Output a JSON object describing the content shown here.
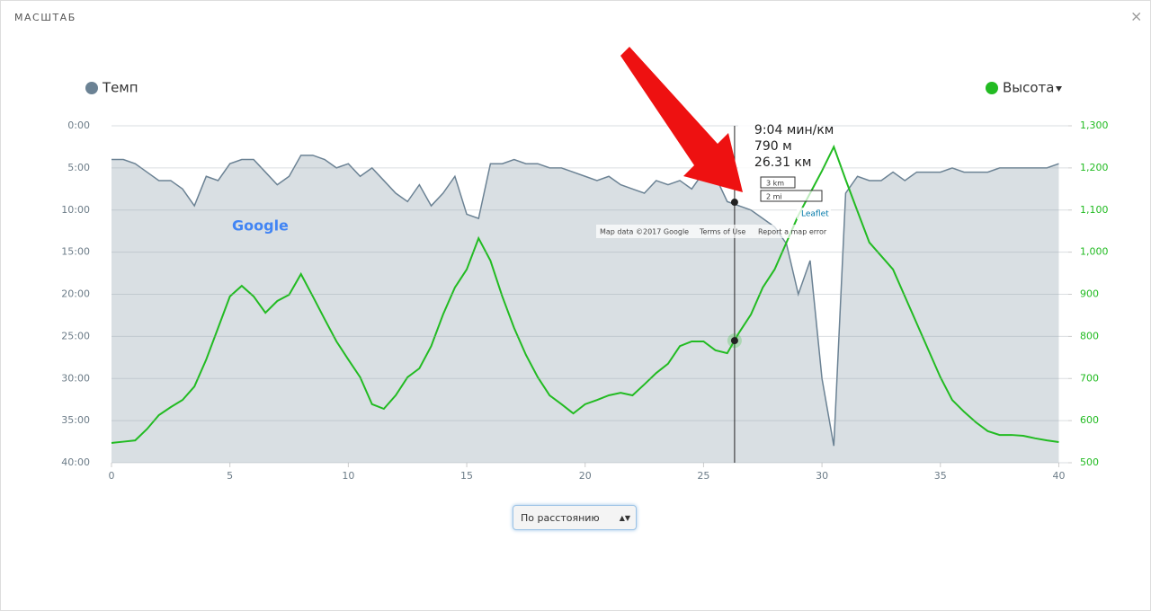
{
  "header": {
    "title": "МАСШТАБ",
    "close": "×"
  },
  "chart_data": {
    "type": "line",
    "x": [
      0,
      0.5,
      1,
      1.5,
      2,
      2.5,
      3,
      3.5,
      4,
      4.5,
      5,
      5.5,
      6,
      6.5,
      7,
      7.5,
      8,
      8.5,
      9,
      9.5,
      10,
      10.5,
      11,
      11.5,
      12,
      12.5,
      13,
      13.5,
      14,
      14.5,
      15,
      15.5,
      16,
      16.5,
      17,
      17.5,
      18,
      18.5,
      19,
      19.5,
      20,
      20.5,
      21,
      21.5,
      22,
      22.5,
      23,
      23.5,
      24,
      24.5,
      25,
      25.5,
      26,
      26.5,
      27,
      27.5,
      28,
      28.5,
      29,
      29.5,
      30,
      30.5,
      31,
      31.5,
      32,
      32.5,
      33,
      33.5,
      34,
      34.5,
      35,
      35.5,
      36,
      36.5,
      37,
      37.5,
      38,
      38.5,
      39,
      39.5,
      40
    ],
    "series": [
      {
        "name": "Темп",
        "color": "#6b8294",
        "fill": "#d9dfe3",
        "axis": "y",
        "values": [
          4.0,
          4.0,
          4.5,
          5.5,
          6.5,
          6.5,
          7.5,
          9.5,
          6.0,
          6.5,
          4.5,
          4.0,
          4.0,
          5.5,
          7.0,
          6.0,
          3.5,
          3.5,
          4.0,
          5.0,
          4.5,
          6.0,
          5.0,
          6.5,
          8.0,
          9.0,
          7.0,
          9.5,
          8.0,
          6.0,
          10.5,
          11.0,
          4.5,
          4.5,
          4.0,
          4.5,
          4.5,
          5.0,
          5.0,
          5.5,
          6.0,
          6.5,
          6.0,
          7.0,
          7.5,
          8.0,
          6.5,
          7.0,
          6.5,
          7.5,
          5.5,
          6.0,
          9.0,
          9.5,
          10.0,
          11.0,
          12.0,
          14.0,
          20.0,
          16.0,
          30.0,
          38.0,
          8.0,
          6.0,
          6.5,
          6.5,
          5.5,
          6.5,
          5.5,
          5.5,
          5.5,
          5.0,
          5.5,
          5.5,
          5.5,
          5.0,
          5.0,
          5.0,
          5.0,
          5.0,
          4.5
        ]
      },
      {
        "name": "Высота",
        "color": "#22bb22",
        "axis": "y2",
        "values": [
          547,
          550,
          553,
          580,
          613,
          632,
          649,
          681,
          745,
          820,
          895,
          920,
          895,
          856,
          884,
          899,
          948,
          895,
          841,
          788,
          745,
          703,
          639,
          628,
          660,
          703,
          724,
          777,
          852,
          916,
          959,
          1033,
          980,
          895,
          820,
          756,
          703,
          660,
          639,
          617,
          639,
          649,
          660,
          666,
          660,
          686,
          713,
          735,
          777,
          788,
          788,
          767,
          760,
          809,
          852,
          916,
          959,
          1023,
          1087,
          1140,
          1193,
          1250,
          1172,
          1097,
          1023,
          991,
          959,
          895,
          831,
          767,
          703,
          649,
          621,
          596,
          575,
          566,
          566,
          564,
          558,
          553,
          549
        ]
      }
    ],
    "xlim": [
      0,
      40.4
    ],
    "xticks": [
      0,
      5,
      10,
      15,
      20,
      25,
      30,
      35,
      40
    ],
    "ylim": [
      40,
      0
    ],
    "yticks": [
      {
        "value": 0,
        "label": "0:00"
      },
      {
        "value": 5,
        "label": "5:00"
      },
      {
        "value": 10,
        "label": "10:00"
      },
      {
        "value": 15,
        "label": "15:00"
      },
      {
        "value": 20,
        "label": "20:00"
      },
      {
        "value": 25,
        "label": "25:00"
      },
      {
        "value": 30,
        "label": "30:00"
      },
      {
        "value": 35,
        "label": "35:00"
      },
      {
        "value": 40,
        "label": "40:00"
      }
    ],
    "y2lim": [
      500,
      1300
    ],
    "y2ticks": [
      500,
      600,
      700,
      800,
      900,
      {
        "value": 1000,
        "label": "1,000"
      },
      {
        "value": 1100,
        "label": "1,100"
      },
      {
        "value": 1200,
        "label": "1,200"
      },
      {
        "value": 1300,
        "label": "1,300"
      }
    ],
    "grid": true,
    "tooltip": {
      "x": 26.31,
      "pace": 9.07,
      "elevation": 790,
      "pace_label": "9:04 мин/км",
      "elevation_label": "790 м",
      "x_label": "26.31 км"
    }
  },
  "map_overlay": {
    "logo": "Google",
    "attribution": "Map data ©2017 Google",
    "terms": "Terms of Use",
    "report": "Report a map error",
    "scale_km": "3 km",
    "scale_mi": "2 mi",
    "leaflet": "Leaflet"
  },
  "control": {
    "select": "По расстоянию"
  }
}
